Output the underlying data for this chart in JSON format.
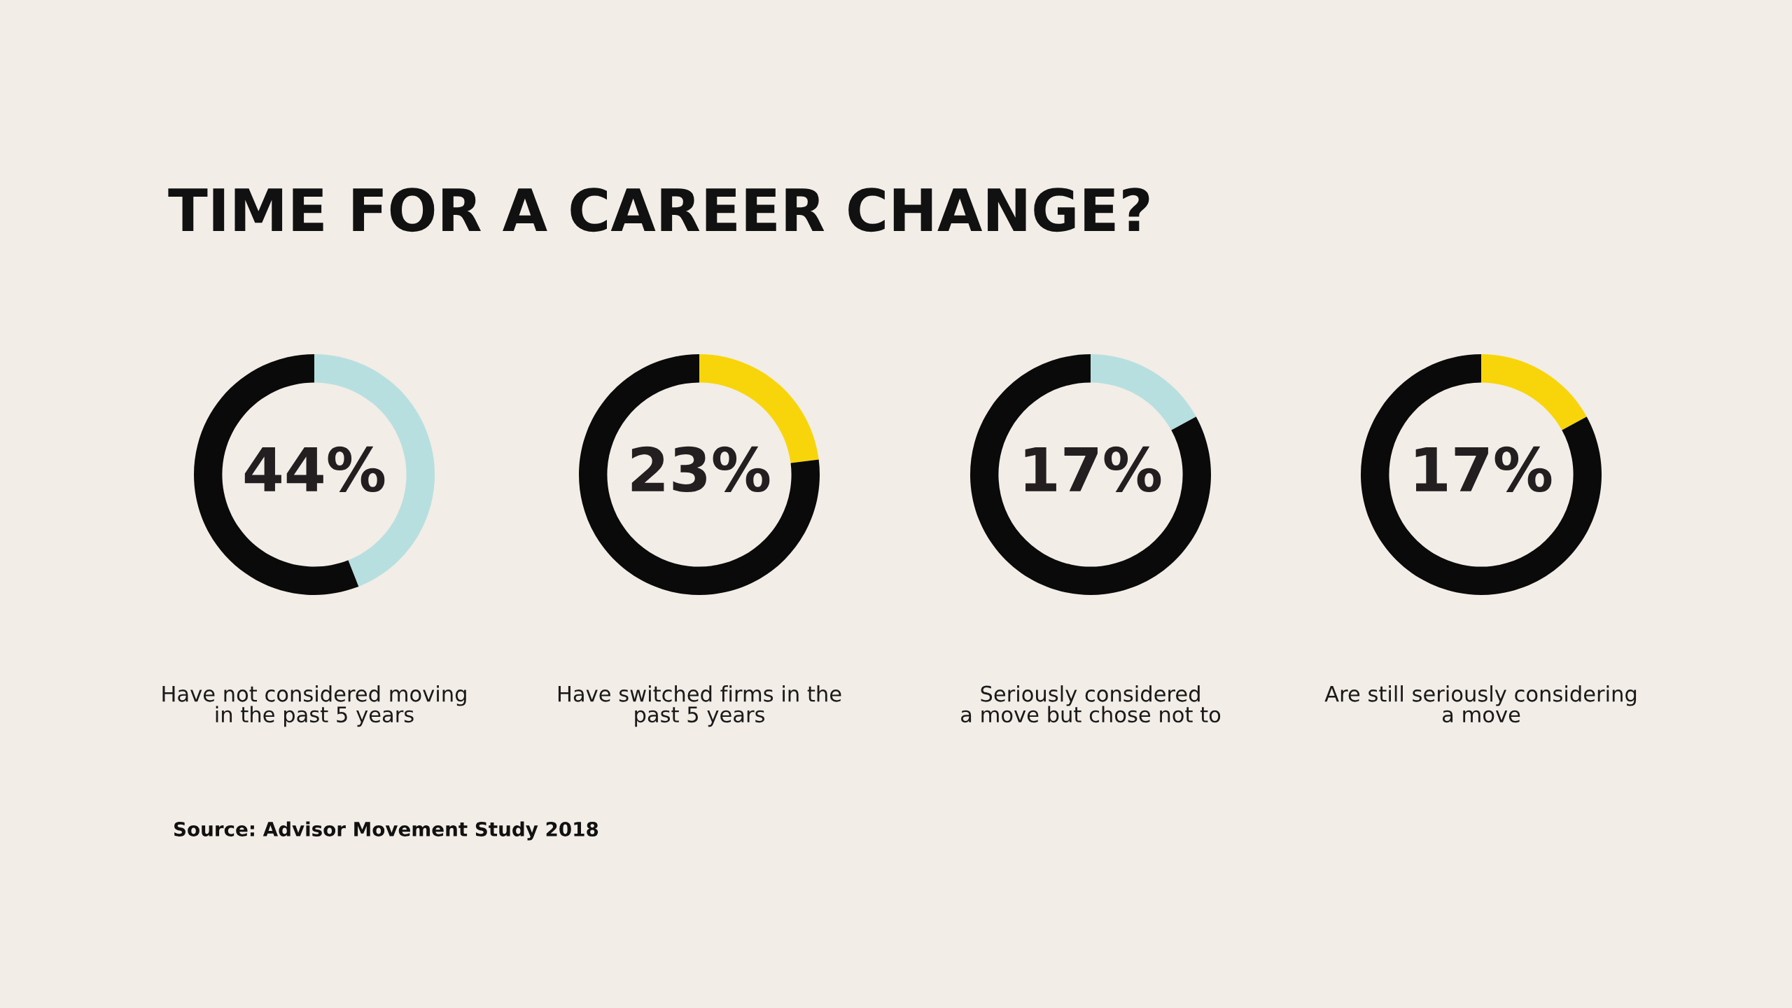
{
  "chart_data": [
    {
      "type": "donut",
      "title": "TIME FOR A CAREER CHANGE?",
      "xlabel": "Have not considered moving\nin the past 5 years",
      "categories": [
        null,
        null
      ],
      "values": [
        44,
        56
      ],
      "colors": [
        "#b7dfe0",
        "#0a0a0a"
      ],
      "value_labels": [
        "44%",
        null
      ],
      "annotations": [
        "Source: Advisor Movement Study 2018"
      ]
    },
    {
      "type": "donut",
      "xlabel": "Have switched firms in the\npast 5 years",
      "categories": [
        null,
        null
      ],
      "values": [
        23,
        77
      ],
      "colors": [
        "#f8d50a",
        "#0a0a0a"
      ],
      "value_labels": [
        "23%",
        null
      ]
    },
    {
      "type": "donut",
      "xlabel": "Seriously considered\na move but chose not to",
      "categories": [
        null,
        null
      ],
      "values": [
        17,
        83
      ],
      "colors": [
        "#b7dfe0",
        "#0a0a0a"
      ],
      "value_labels": [
        "17%",
        null
      ]
    },
    {
      "type": "donut",
      "xlabel": "Are still seriously considering\na move",
      "categories": [
        null,
        null
      ],
      "values": [
        17,
        83
      ],
      "colors": [
        "#f8d50a",
        "#0a0a0a"
      ],
      "value_labels": [
        "17%",
        null
      ]
    }
  ]
}
